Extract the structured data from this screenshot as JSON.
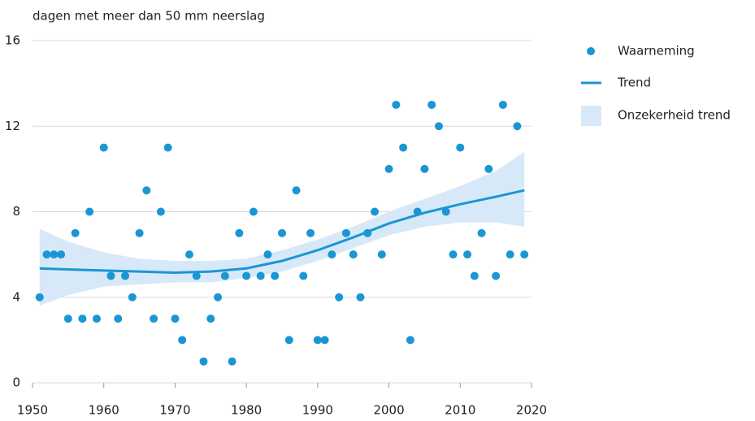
{
  "chart_data": {
    "type": "scatter",
    "ylabel": "dagen met meer dan 50 mm neerslag",
    "xlim": [
      1950,
      2020
    ],
    "xticks": [
      1950,
      1960,
      1970,
      1980,
      1990,
      2000,
      2010,
      2020
    ],
    "ylim": [
      0,
      16
    ],
    "yticks": [
      0,
      4,
      8,
      12,
      16
    ],
    "grid": true,
    "legend": "right",
    "series": [
      {
        "name": "Waarneming",
        "type": "scatter",
        "color": "#1a96d4",
        "x": [
          1951,
          1952,
          1953,
          1954,
          1955,
          1956,
          1957,
          1958,
          1959,
          1960,
          1961,
          1962,
          1963,
          1964,
          1965,
          1966,
          1967,
          1968,
          1969,
          1970,
          1971,
          1972,
          1973,
          1974,
          1975,
          1976,
          1977,
          1978,
          1979,
          1980,
          1981,
          1982,
          1983,
          1984,
          1985,
          1986,
          1987,
          1988,
          1989,
          1990,
          1991,
          1992,
          1993,
          1994,
          1995,
          1996,
          1997,
          1998,
          1999,
          2000,
          2001,
          2002,
          2003,
          2004,
          2005,
          2006,
          2007,
          2008,
          2009,
          2010,
          2011,
          2012,
          2013,
          2014,
          2015,
          2016,
          2017,
          2018,
          2019
        ],
        "values": [
          4,
          6,
          6,
          6,
          3,
          7,
          3,
          8,
          3,
          11,
          5,
          3,
          5,
          4,
          7,
          9,
          3,
          8,
          11,
          3,
          2,
          6,
          5,
          1,
          3,
          4,
          5,
          1,
          7,
          5,
          8,
          5,
          6,
          5,
          7,
          2,
          9,
          5,
          7,
          2,
          2,
          6,
          4,
          7,
          6,
          4,
          7,
          8,
          6,
          10,
          13,
          11,
          2,
          8,
          10,
          13,
          12,
          8,
          6,
          11,
          6,
          5,
          7,
          10,
          5,
          13,
          6,
          12,
          6
        ]
      },
      {
        "name": "Trend",
        "type": "line",
        "color": "#1a96d4",
        "x": [
          1951,
          1955,
          1960,
          1965,
          1970,
          1975,
          1980,
          1985,
          1990,
          1995,
          2000,
          2005,
          2010,
          2015,
          2019
        ],
        "values": [
          5.35,
          5.3,
          5.25,
          5.2,
          5.15,
          5.2,
          5.35,
          5.7,
          6.2,
          6.8,
          7.45,
          7.95,
          8.35,
          8.7,
          9.0
        ]
      },
      {
        "name": "Onzekerheid trend",
        "type": "band",
        "color": "#d7e9f8",
        "x": [
          1951,
          1955,
          1960,
          1965,
          1970,
          1975,
          1980,
          1985,
          1990,
          1995,
          2000,
          2005,
          2010,
          2015,
          2019
        ],
        "lower": [
          3.6,
          4.1,
          4.5,
          4.6,
          4.7,
          4.7,
          4.9,
          5.2,
          5.7,
          6.3,
          6.9,
          7.3,
          7.5,
          7.5,
          7.3
        ],
        "upper": [
          7.2,
          6.6,
          6.1,
          5.8,
          5.7,
          5.7,
          5.8,
          6.2,
          6.7,
          7.3,
          8.0,
          8.6,
          9.2,
          9.9,
          10.8
        ]
      }
    ]
  }
}
